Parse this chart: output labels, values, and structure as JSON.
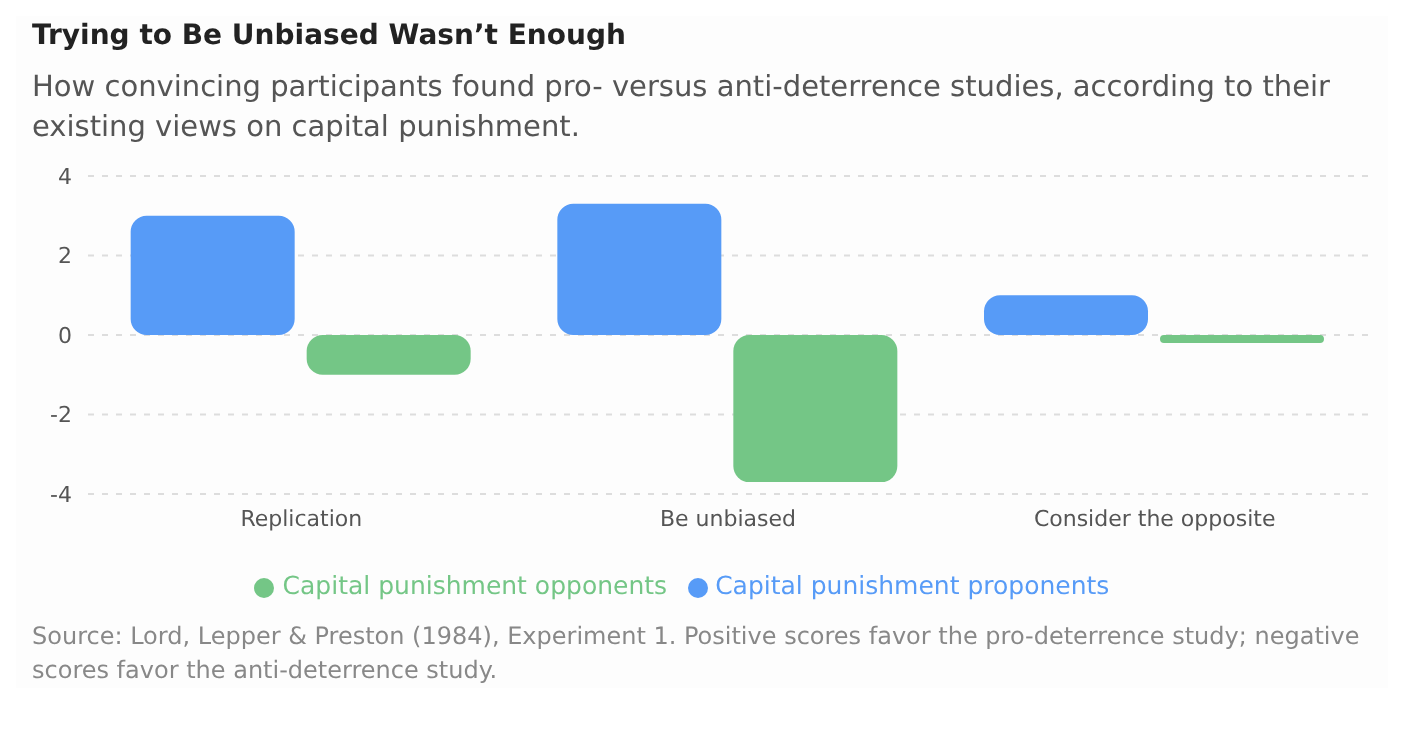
{
  "chart_data": {
    "type": "bar",
    "title": "Trying to Be Unbiased Wasn’t Enough",
    "subtitle": "How convincing participants found pro- versus anti-deterrence studies, according to their existing views on capital punishment.",
    "categories": [
      "Replication",
      "Be unbiased",
      "Consider the opposite"
    ],
    "series": [
      {
        "name": "Capital punishment proponents",
        "color": "#579bf7",
        "values": [
          3.0,
          3.3,
          1.0
        ]
      },
      {
        "name": "Capital punishment opponents",
        "color": "#74c686",
        "values": [
          -1.0,
          -3.7,
          -0.2
        ]
      }
    ],
    "ylim": [
      -4,
      4
    ],
    "yticks": [
      -4,
      -2,
      0,
      2,
      4
    ],
    "grid": "y",
    "legend": "bottom",
    "annotations": [
      "Source: Lord, Lepper & Preston (1984), Experiment 1. Positive scores favor the pro-deterrence study; negative scores favor the anti-deterrence study."
    ]
  }
}
